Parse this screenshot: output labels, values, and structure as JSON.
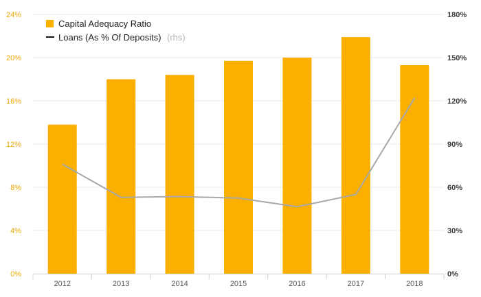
{
  "chart_data": {
    "type": "bar+line",
    "categories": [
      "2012",
      "2013",
      "2014",
      "2015",
      "2016",
      "2017",
      "2018"
    ],
    "series": [
      {
        "name": "Capital Adequacy Ratio",
        "type": "bar",
        "axis": "left",
        "color": "#fbb000",
        "values": [
          13.8,
          18.0,
          18.4,
          19.7,
          20.0,
          21.9,
          19.3
        ]
      },
      {
        "name": "Loans (As % Of Deposits)",
        "suffix": "(rhs)",
        "type": "line",
        "axis": "right",
        "color": "#a8a8a8",
        "values": [
          76.0,
          53.0,
          53.5,
          52.5,
          46.5,
          55.0,
          122.0
        ]
      }
    ],
    "y_left": {
      "range": [
        0,
        24
      ],
      "ticks": [
        "0%",
        "4%",
        "8%",
        "12%",
        "16%",
        "20%",
        "24%"
      ],
      "color": "#f0a800"
    },
    "y_right": {
      "range": [
        0,
        180
      ],
      "ticks": [
        "0%",
        "30%",
        "60%",
        "90%",
        "120%",
        "150%",
        "180%"
      ],
      "color": "#3a3a3a"
    },
    "grid": true,
    "legend_position": "top-left"
  }
}
